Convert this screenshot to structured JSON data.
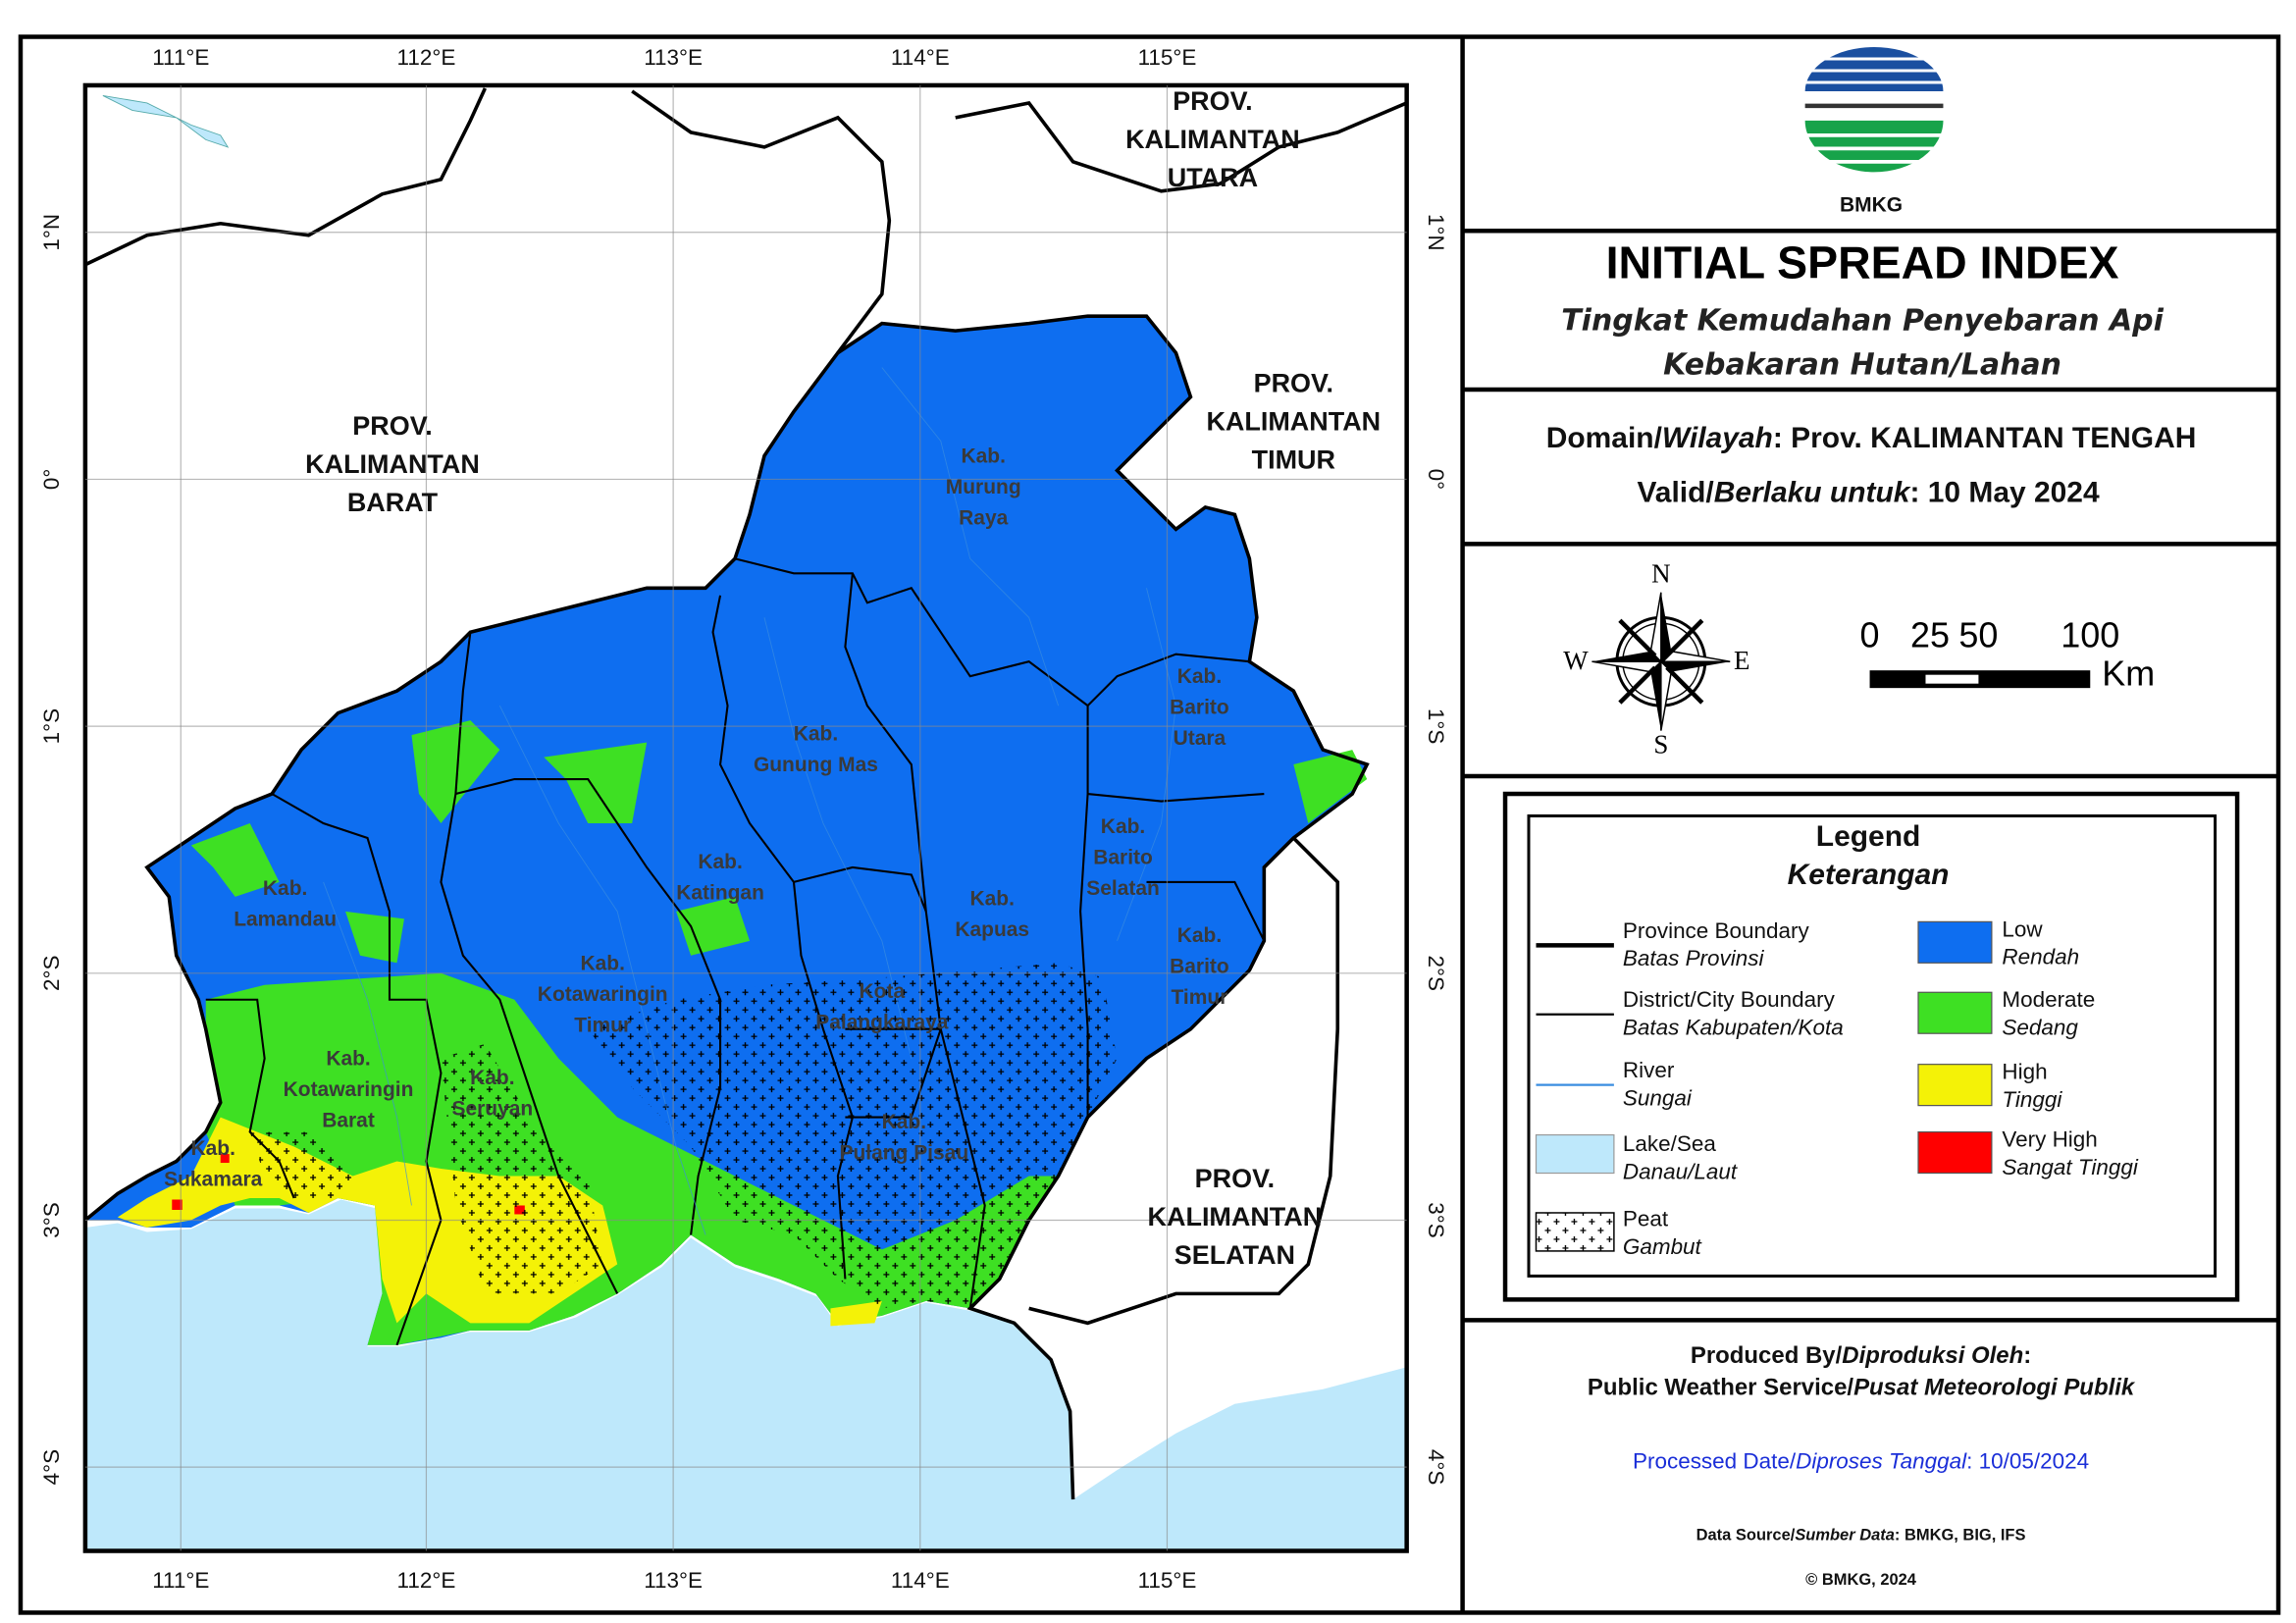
{
  "map": {
    "x_labels": [
      "111°E",
      "112°E",
      "113°E",
      "114°E",
      "115°E"
    ],
    "y_labels": [
      "1°N",
      "0°",
      "1°S",
      "2°S",
      "3°S",
      "4°S"
    ],
    "province_labels": [
      [
        "PROV.",
        "KALIMANTAN",
        "UTARA"
      ],
      [
        "PROV.",
        "KALIMANTAN",
        "BARAT"
      ],
      [
        "PROV.",
        "KALIMANTAN",
        "TIMUR"
      ],
      [
        "PROV.",
        "KALIMANTAN",
        "SELATAN"
      ]
    ],
    "district_labels": [
      [
        "Kab.",
        "Murung",
        "Raya"
      ],
      [
        "Kab.",
        "Barito",
        "Utara"
      ],
      [
        "Kab.",
        "Gunung Mas"
      ],
      [
        "Kab.",
        "Katingan"
      ],
      [
        "Kab.",
        "Kapuas"
      ],
      [
        "Kab.",
        "Barito",
        "Selatan"
      ],
      [
        "Kab.",
        "Barito",
        "Timur"
      ],
      [
        "Kab.",
        "Lamandau"
      ],
      [
        "Kab.",
        "Kotawaringin",
        "Timur"
      ],
      [
        "Kota",
        "Palangkaraya"
      ],
      [
        "Kab.",
        "Kotawaringin",
        "Barat"
      ],
      [
        "Kab.",
        "Seruyan"
      ],
      [
        "Kab.",
        "Pulang Pisau"
      ],
      [
        "Kab.",
        "Sukamara"
      ]
    ]
  },
  "header": {
    "logo_text": "BMKG",
    "title": "INITIAL SPREAD INDEX",
    "subtitle": [
      "Tingkat Kemudahan Penyebaran Api",
      "Kebakaran Hutan/Lahan"
    ]
  },
  "info": {
    "domain": [
      "Domain/",
      "Wilayah",
      ": Prov. KALIMANTAN TENGAH"
    ],
    "valid": [
      "Valid/",
      "Berlaku untuk",
      ": 10 May 2024"
    ]
  },
  "compass": {
    "north": "N",
    "south": "S",
    "east": "E",
    "west": "W"
  },
  "scale_bar": {
    "labels": [
      "0",
      "25",
      "50",
      "100"
    ],
    "unit": "Km"
  },
  "legend": {
    "title": "Legend",
    "subtitle": "Keterangan",
    "items": [
      {
        "label": "Province Boundary",
        "sublabel": "Batas Provinsi"
      },
      {
        "label": "District/City Boundary",
        "sublabel": "Batas Kabupaten/Kota"
      },
      {
        "label": "River",
        "sublabel": "Sungai"
      },
      {
        "label": "Lake/Sea",
        "sublabel": "Danau/Laut"
      },
      {
        "label": "Peat",
        "sublabel": "Gambut"
      },
      {
        "label": "Low",
        "sublabel": "Rendah"
      },
      {
        "label": "Moderate",
        "sublabel": "Sedang"
      },
      {
        "label": "High",
        "sublabel": "Tinggi"
      },
      {
        "label": "Very High",
        "sublabel": "Sangat Tinggi"
      }
    ]
  },
  "credits": {
    "produced": [
      "Produced By/",
      "Diproduksi Oleh",
      ":"
    ],
    "producer": [
      "Public Weather Service/",
      "Pusat Meteorologi Publik"
    ],
    "processed": [
      "Processed Date/",
      "Diproses Tanggal",
      ": 10/05/2024"
    ],
    "source": [
      "Data Source/",
      "Sumber Data",
      ": BMKG, BIG, IFS"
    ],
    "copyright": "© BMKG, 2024"
  }
}
